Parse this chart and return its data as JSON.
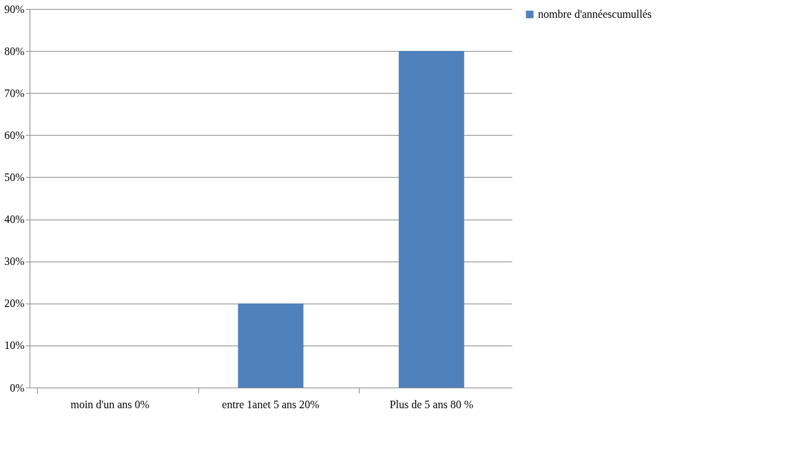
{
  "chart_data": {
    "type": "bar",
    "categories": [
      "moin d'un ans 0%",
      "entre 1anet 5 ans 20%",
      "Plus de 5 ans 80 %"
    ],
    "series": [
      {
        "name": "nombre d'annéescumullés",
        "color": "#4f81bd",
        "values": [
          0,
          20,
          80
        ]
      }
    ],
    "ylim": [
      0,
      90
    ],
    "yticks": [
      {
        "value": 0,
        "label": "0%"
      },
      {
        "value": 10,
        "label": "10%"
      },
      {
        "value": 20,
        "label": "20%"
      },
      {
        "value": 30,
        "label": "30%"
      },
      {
        "value": 40,
        "label": "40%"
      },
      {
        "value": 50,
        "label": "50%"
      },
      {
        "value": 60,
        "label": "60%"
      },
      {
        "value": 70,
        "label": "70%"
      },
      {
        "value": 80,
        "label": "80%"
      },
      {
        "value": 90,
        "label": "90%"
      }
    ],
    "grid": "y",
    "legend": "right"
  }
}
